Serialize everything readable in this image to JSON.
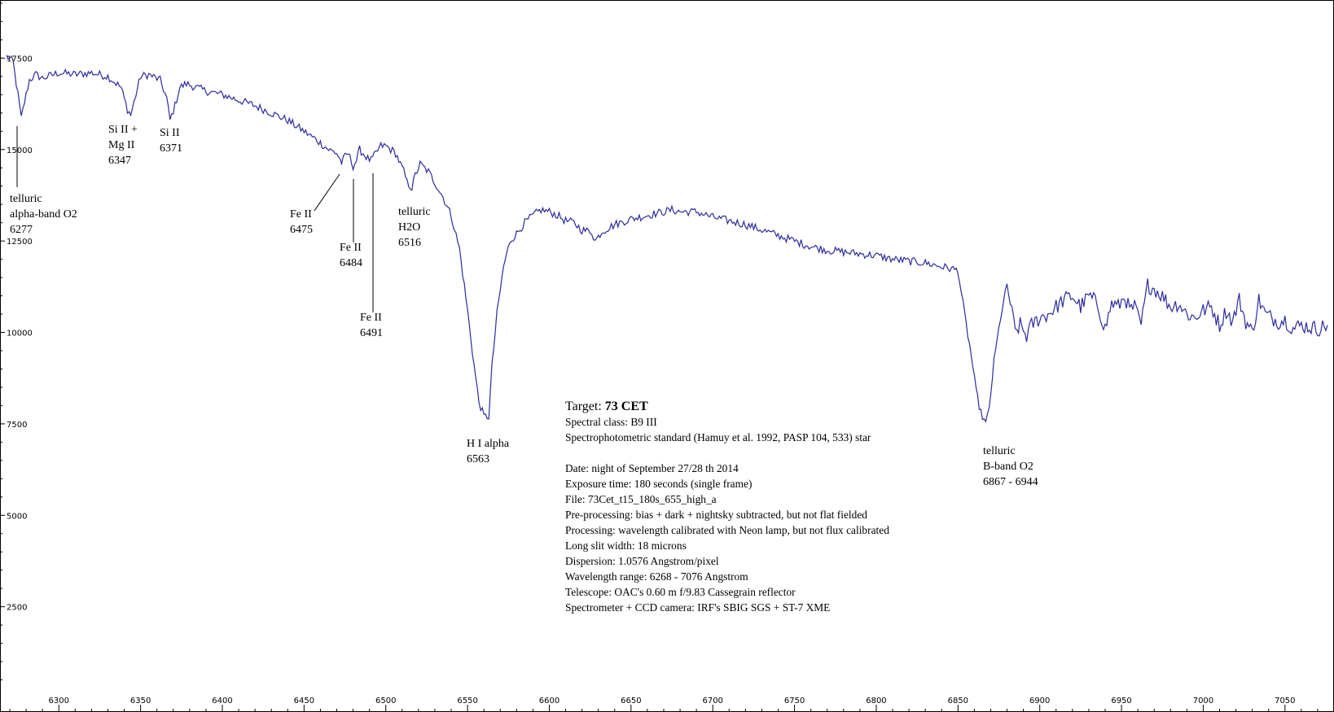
{
  "chart_data": {
    "type": "line",
    "title": "",
    "xlabel": "",
    "ylabel": "",
    "xlim": [
      6268,
      7076
    ],
    "ylim": [
      0,
      19000
    ],
    "grid": false,
    "line_color": "#2b2b9e",
    "x_ticks": [
      6300,
      6350,
      6400,
      6450,
      6500,
      6550,
      6600,
      6650,
      6700,
      6750,
      6800,
      6850,
      6900,
      6950,
      7000,
      7050
    ],
    "y_ticks": [
      2500,
      5000,
      7500,
      10000,
      12500,
      15000,
      17500
    ],
    "spectrum": {
      "x": [
        6268,
        6272,
        6275,
        6277,
        6279,
        6282,
        6286,
        6290,
        6300,
        6310,
        6320,
        6330,
        6338,
        6342,
        6344,
        6346,
        6350,
        6355,
        6362,
        6366,
        6368,
        6371,
        6374,
        6378,
        6390,
        6400,
        6410,
        6420,
        6430,
        6440,
        6450,
        6458,
        6465,
        6470,
        6473,
        6475,
        6477,
        6480,
        6482,
        6484,
        6486,
        6489,
        6491,
        6494,
        6497,
        6500,
        6506,
        6511,
        6513,
        6516,
        6518,
        6521,
        6526,
        6530,
        6535,
        6540,
        6545,
        6550,
        6554,
        6557,
        6560,
        6563,
        6565,
        6568,
        6572,
        6576,
        6580,
        6585,
        6590,
        6595,
        6600,
        6605,
        6610,
        6615,
        6620,
        6626,
        6628,
        6632,
        6640,
        6650,
        6660,
        6670,
        6675,
        6680,
        6690,
        6700,
        6710,
        6720,
        6730,
        6740,
        6750,
        6760,
        6770,
        6780,
        6790,
        6800,
        6810,
        6820,
        6830,
        6840,
        6850,
        6855,
        6858,
        6861,
        6864,
        6867,
        6869,
        6872,
        6876,
        6880,
        6882,
        6885,
        6888,
        6892,
        6895,
        6900,
        6905,
        6910,
        6915,
        6920,
        6925,
        6930,
        6935,
        6940,
        6944,
        6948,
        6952,
        6955,
        6958,
        6962,
        6966,
        6970,
        6975,
        6980,
        6985,
        6990,
        6995,
        7000,
        7005,
        7010,
        7014,
        7018,
        7022,
        7026,
        7030,
        7034,
        7038,
        7042,
        7046,
        7050,
        7055,
        7060,
        7065,
        7070,
        7076
      ],
      "y": [
        17550,
        17400,
        16500,
        15850,
        16300,
        16900,
        17050,
        16950,
        17100,
        17050,
        17100,
        17000,
        16700,
        16100,
        15950,
        16300,
        17000,
        17050,
        16900,
        16400,
        15800,
        16200,
        16700,
        16800,
        16600,
        16500,
        16350,
        16200,
        16000,
        15800,
        15500,
        15250,
        15000,
        14900,
        14650,
        14800,
        14900,
        14550,
        14700,
        15000,
        14900,
        14750,
        14700,
        14900,
        15100,
        15100,
        14900,
        14400,
        14100,
        13950,
        14300,
        14600,
        14400,
        14100,
        13700,
        13200,
        12300,
        10600,
        9100,
        8100,
        7700,
        7700,
        9100,
        10500,
        11800,
        12500,
        12700,
        13000,
        13200,
        13350,
        13300,
        13200,
        13050,
        13000,
        12800,
        12750,
        12500,
        12750,
        12950,
        13100,
        13200,
        13300,
        13350,
        13300,
        13300,
        13150,
        13050,
        12950,
        12800,
        12650,
        12500,
        12350,
        12250,
        12200,
        12150,
        12100,
        12000,
        11950,
        11900,
        11800,
        11700,
        10200,
        9400,
        8400,
        7800,
        7500,
        7900,
        9200,
        10400,
        11300,
        10800,
        10000,
        10200,
        9900,
        10200,
        10400,
        10500,
        10700,
        10900,
        11000,
        10700,
        11000,
        10800,
        10100,
        10800,
        10700,
        11000,
        10600,
        10700,
        10200,
        11300,
        11200,
        11000,
        10700,
        10800,
        10500,
        10400,
        10600,
        10700,
        10200,
        10600,
        10300,
        10900,
        10300,
        10000,
        10900,
        10500,
        10400,
        10300,
        10350,
        10100,
        10200,
        10150,
        10100,
        10200
      ]
    },
    "annotations": [
      {
        "lines": [
          "telluric",
          "alpha-band O2",
          "6277"
        ],
        "x": 6277,
        "y": 15850
      },
      {
        "lines": [
          "Si II +",
          "Mg II",
          "6347"
        ],
        "x": 6344,
        "y": 15950
      },
      {
        "lines": [
          "Si II",
          "6371"
        ],
        "x": 6368,
        "y": 15800
      },
      {
        "lines": [
          "Fe II",
          "6475"
        ],
        "x": 6473,
        "y": 14650
      },
      {
        "lines": [
          "Fe II",
          "6484"
        ],
        "x": 6480,
        "y": 14550
      },
      {
        "lines": [
          "Fe II",
          "6491"
        ],
        "x": 6491,
        "y": 14700
      },
      {
        "lines": [
          "telluric",
          "H2O",
          "6516"
        ],
        "x": 6516,
        "y": 13950
      },
      {
        "lines": [
          "H I alpha",
          "6563"
        ],
        "x": 6563,
        "y": 7700
      },
      {
        "lines": [
          "telluric",
          "B-band O2",
          "6867 - 6944"
        ],
        "x": 6867,
        "y": 7500
      }
    ]
  },
  "info": {
    "target_prefix": "Target: ",
    "target_name": "73 CET",
    "lines": [
      "Spectral class: B9 III",
      "Spectrophotometric standard (Hamuy et al. 1992, PASP 104, 533) star",
      "",
      "Date: night of September 27/28 th 2014",
      "Exposure time: 180 seconds (single frame)",
      "File: 73Cet_t15_180s_655_high_a",
      "Pre-processing: bias + dark + nightsky subtracted, but not flat fielded",
      "Processing: wavelength calibrated with Neon lamp, but not flux calibrated",
      "Long slit width: 18 microns",
      "Dispersion: 1.0576 Angstrom/pixel",
      "Wavelength range: 6268 - 7076 Angstrom",
      "Telescope: OAC's 0.60 m f/9.83 Cassegrain reflector",
      "Spectrometer + CCD camera: IRF's SBIG SGS + ST-7 XME"
    ]
  }
}
